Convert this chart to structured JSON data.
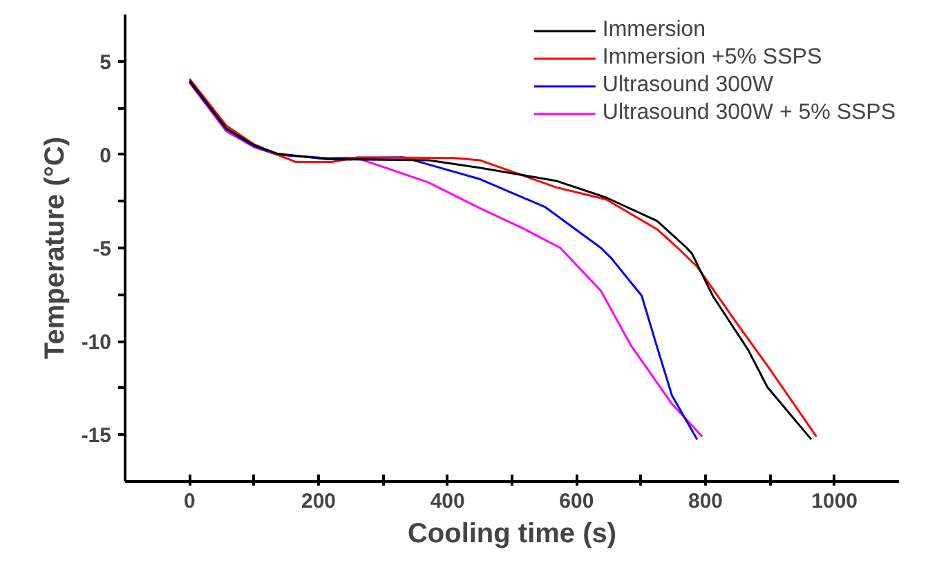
{
  "chart_data": {
    "type": "line",
    "xlabel": "Cooling time (s)",
    "ylabel": "Temperature (°C)",
    "xlim": [
      -100,
      1100
    ],
    "xticks": [
      0,
      {
        "value": 100,
        "label": null
      },
      200,
      {
        "value": 300,
        "label": null
      },
      400,
      {
        "value": 500,
        "label": null
      },
      600,
      {
        "value": 700,
        "label": null
      },
      800,
      {
        "value": 900,
        "label": null
      },
      1000
    ],
    "ylim": [
      -17.5,
      7.5
    ],
    "yticks": [
      5,
      {
        "value": 2.5,
        "label": null
      },
      0,
      {
        "value": -2.5,
        "label": null
      },
      -5,
      {
        "value": -7.5,
        "label": null
      },
      -10,
      {
        "value": -12.5,
        "label": null
      },
      -15
    ],
    "grid": false,
    "legend": "top right",
    "line_style": "solid",
    "series": [
      {
        "name": "Immersion",
        "color": "#000000",
        "x": [
          0,
          57,
          100,
          136,
          214,
          371,
          449,
          568,
          646,
          725,
          771,
          779,
          811,
          866,
          896,
          964
        ],
        "values": [
          3.95,
          1.4,
          0.5,
          0.05,
          -0.25,
          -0.3,
          -0.7,
          -1.4,
          -2.3,
          -3.55,
          -5.0,
          -5.3,
          -7.55,
          -10.45,
          -12.45,
          -15.25
        ]
      },
      {
        "name": "Immersion +5% SSPS",
        "color": "#ff0000",
        "x": [
          0,
          57,
          100,
          136,
          165,
          220,
          260,
          410,
          450,
          568,
          646,
          725,
          760,
          787,
          850,
          896,
          972
        ],
        "values": [
          4.05,
          1.55,
          0.55,
          0.0,
          -0.4,
          -0.4,
          -0.15,
          -0.18,
          -0.3,
          -1.75,
          -2.4,
          -4.0,
          -5.1,
          -6.0,
          -9.1,
          -11.3,
          -15.1
        ]
      },
      {
        "name": "Ultrasound 300W",
        "color": "#0000ff",
        "x": [
          0,
          57,
          100,
          136,
          214,
          332,
          449,
          551,
          638,
          654,
          701,
          724,
          748,
          787
        ],
        "values": [
          3.9,
          1.35,
          0.45,
          0.0,
          -0.2,
          -0.15,
          -1.3,
          -2.8,
          -5.0,
          -5.55,
          -7.55,
          -10.2,
          -12.9,
          -15.25
        ]
      },
      {
        "name": "Ultrasound 300W + 5% SSPS",
        "color": "#ff00ff",
        "x": [
          0,
          57,
          100,
          136,
          214,
          261,
          308,
          371,
          449,
          520,
          575,
          638,
          684,
          748,
          795
        ],
        "values": [
          3.85,
          1.25,
          0.4,
          0.0,
          -0.2,
          -0.2,
          -0.75,
          -1.5,
          -2.85,
          -4.0,
          -5.0,
          -7.3,
          -10.2,
          -13.35,
          -15.1
        ]
      }
    ]
  }
}
